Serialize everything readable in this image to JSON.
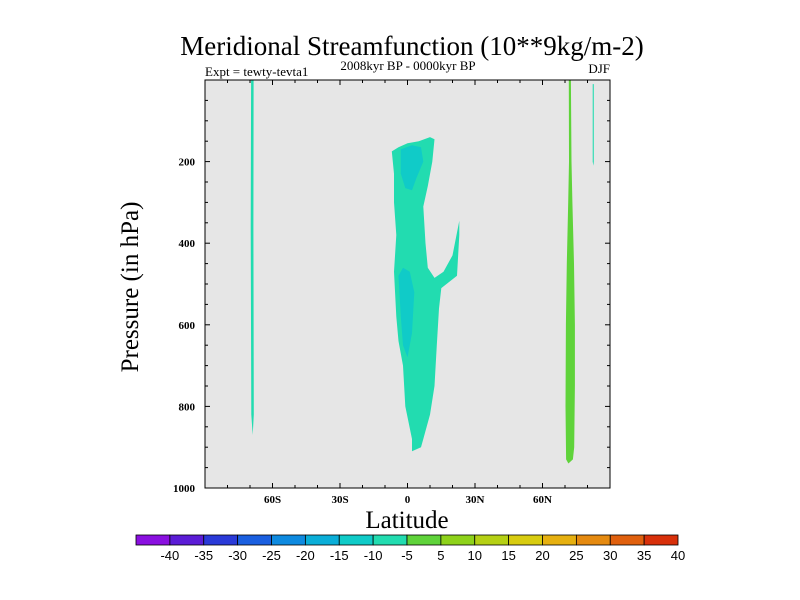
{
  "chart_data": {
    "type": "contour",
    "title": "Meridional Streamfunction (10**9kg/m-2)",
    "experiment": "Expt = tewty-tevta1",
    "period": "2008kyr BP - 0000kyr BP",
    "season": "DJF",
    "xlabel": "Latitude",
    "ylabel": "Pressure (in hPa)",
    "xlim": [
      -90,
      90
    ],
    "ylim": [
      1000,
      0
    ],
    "xticks": [
      {
        "value": -60,
        "label": "60S"
      },
      {
        "value": -30,
        "label": "30S"
      },
      {
        "value": 0,
        "label": "0"
      },
      {
        "value": 30,
        "label": "30N"
      },
      {
        "value": 60,
        "label": "60N"
      }
    ],
    "yticks": [
      {
        "value": 200,
        "label": "200"
      },
      {
        "value": 400,
        "label": "400"
      },
      {
        "value": 600,
        "label": "600"
      },
      {
        "value": 800,
        "label": "800"
      },
      {
        "value": 1000,
        "label": "1000"
      }
    ],
    "background_color": "#e6e6e6",
    "colorbar": {
      "levels": [
        "-40",
        "-35",
        "-30",
        "-25",
        "-20",
        "-15",
        "-10",
        "-5",
        "5",
        "10",
        "15",
        "20",
        "25",
        "30",
        "35",
        "40"
      ],
      "colors": [
        "#8a10e0",
        "#5b1cd6",
        "#2a3ad8",
        "#1a5fe0",
        "#0e8ae0",
        "#0aaed8",
        "#10cbc8",
        "#22dcb0",
        "#5fd33a",
        "#8ed21a",
        "#b5d014",
        "#d8cc10",
        "#e6b010",
        "#e58a10",
        "#e0600e",
        "#d8300a"
      ]
    },
    "regions": [
      {
        "name": "sh-high-lat-cell",
        "color": "#22dcb0",
        "points": [
          [
            -69.5,
            0
          ],
          [
            -68.4,
            0
          ],
          [
            -68.5,
            360
          ],
          [
            -68.3,
            820
          ],
          [
            -68.8,
            870
          ],
          [
            -69.4,
            820
          ],
          [
            -69.7,
            360
          ]
        ]
      },
      {
        "name": "tropical-cell-outer",
        "color": "#22dcb0",
        "points": [
          [
            -7,
            175
          ],
          [
            -4,
            165
          ],
          [
            0,
            155
          ],
          [
            5,
            150
          ],
          [
            10,
            140
          ],
          [
            12,
            145
          ],
          [
            11,
            200
          ],
          [
            9,
            260
          ],
          [
            7,
            310
          ],
          [
            8,
            400
          ],
          [
            9,
            460
          ],
          [
            12,
            485
          ],
          [
            16,
            470
          ],
          [
            20,
            430
          ],
          [
            23,
            345
          ],
          [
            23,
            380
          ],
          [
            22,
            480
          ],
          [
            15,
            510
          ],
          [
            14,
            560
          ],
          [
            13,
            650
          ],
          [
            12,
            750
          ],
          [
            10,
            820
          ],
          [
            7,
            880
          ],
          [
            6,
            900
          ],
          [
            4,
            905
          ],
          [
            2,
            910
          ],
          [
            2,
            880
          ],
          [
            -1,
            800
          ],
          [
            -2,
            700
          ],
          [
            -4,
            640
          ],
          [
            -5,
            580
          ],
          [
            -6,
            470
          ],
          [
            -5,
            380
          ],
          [
            -6,
            300
          ],
          [
            -6,
            230
          ]
        ]
      },
      {
        "name": "tropical-cell-inner-1",
        "color": "#10cbc8",
        "points": [
          [
            -3,
            170
          ],
          [
            2,
            160
          ],
          [
            6,
            165
          ],
          [
            7,
            200
          ],
          [
            4,
            240
          ],
          [
            2,
            270
          ],
          [
            -1,
            265
          ],
          [
            -3,
            230
          ]
        ]
      },
      {
        "name": "tropical-cell-inner-2",
        "color": "#10cbc8",
        "points": [
          [
            -4,
            480
          ],
          [
            -2,
            460
          ],
          [
            1,
            470
          ],
          [
            3,
            520
          ],
          [
            2,
            620
          ],
          [
            0,
            680
          ],
          [
            -2,
            650
          ],
          [
            -3,
            580
          ]
        ]
      },
      {
        "name": "nh-high-lat-cell",
        "color": "#5fd33a",
        "points": [
          [
            71.7,
            0
          ],
          [
            72.6,
            0
          ],
          [
            72.9,
            200
          ],
          [
            73.3,
            300
          ],
          [
            74.0,
            450
          ],
          [
            74.4,
            600
          ],
          [
            74.4,
            750
          ],
          [
            74.1,
            900
          ],
          [
            73.5,
            930
          ],
          [
            71.5,
            940
          ],
          [
            70.5,
            930
          ],
          [
            70.2,
            800
          ],
          [
            70.4,
            600
          ],
          [
            70.8,
            450
          ],
          [
            71.4,
            300
          ],
          [
            71.8,
            200
          ]
        ]
      },
      {
        "name": "nh-polar-cell",
        "color": "#22dcb0",
        "points": [
          [
            82.3,
            10
          ],
          [
            82.8,
            10
          ],
          [
            82.8,
            200
          ],
          [
            82.6,
            210
          ],
          [
            82.3,
            200
          ]
        ]
      }
    ]
  }
}
